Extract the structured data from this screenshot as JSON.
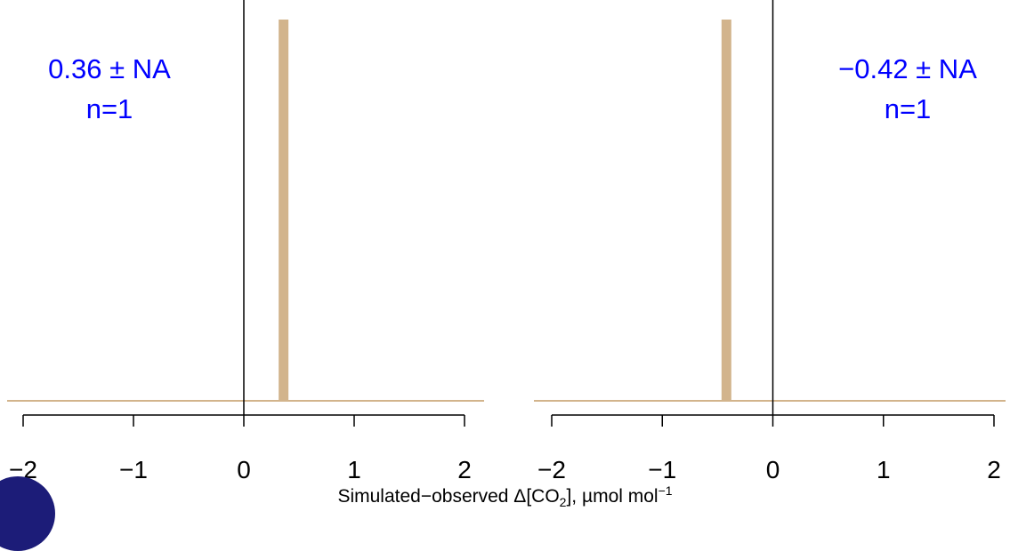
{
  "colors": {
    "bar": "#d2b48c",
    "baseline": "#d2b48c",
    "axis": "#000000",
    "annotation": "#0000ff",
    "badge": "#1c1c78"
  },
  "axis_label": {
    "prefix": "Simulated−observed Δ[CO",
    "sub": "2",
    "middle": "], µmol mol",
    "sup": "−1"
  },
  "chart_data": [
    {
      "type": "bar",
      "x_ticks": [
        "−2",
        "−1",
        "0",
        "1",
        "2"
      ],
      "xlim": [
        -2,
        2
      ],
      "bars": [
        {
          "x": 0.36,
          "count": 1
        }
      ],
      "annotation": {
        "line1": "0.36 ± NA",
        "line2": "n=1"
      },
      "annotation_side": "left"
    },
    {
      "type": "bar",
      "x_ticks": [
        "−2",
        "−1",
        "0",
        "1",
        "2"
      ],
      "xlim": [
        -2,
        2
      ],
      "bars": [
        {
          "x": -0.42,
          "count": 1
        }
      ],
      "annotation": {
        "line1": "−0.42 ± NA",
        "line2": "n=1"
      },
      "annotation_side": "right"
    }
  ]
}
